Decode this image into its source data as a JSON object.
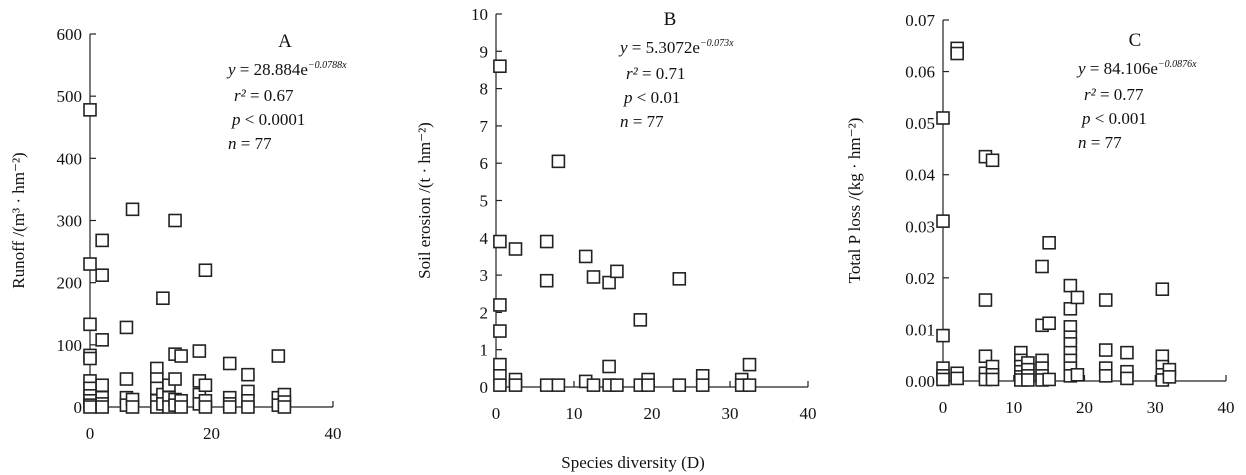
{
  "shared_xlabel": "Species diversity (D)",
  "chart_data": [
    {
      "type": "scatter",
      "panel": "A",
      "xlabel": "",
      "ylabel": "Runoff /(m³ · hm⁻²)",
      "xlim": [
        0,
        40
      ],
      "ylim": [
        0,
        600
      ],
      "xticks": [
        "0",
        "20",
        "40"
      ],
      "yticks": [
        "0",
        "100",
        "200",
        "300",
        "400",
        "500",
        "600"
      ],
      "annotations": {
        "equation": "y = 28.884e−0.0788x",
        "eq_coef": "28.884e",
        "eq_exp": "−0.0788x",
        "r2": "r² = 0.67",
        "p": "p < 0.0001",
        "n": "n = 77"
      },
      "points": [
        [
          0,
          478
        ],
        [
          0,
          230
        ],
        [
          0,
          133
        ],
        [
          0,
          83
        ],
        [
          0,
          78
        ],
        [
          0,
          42
        ],
        [
          0,
          30
        ],
        [
          0,
          18
        ],
        [
          0,
          10
        ],
        [
          0,
          3
        ],
        [
          0,
          0
        ],
        [
          2,
          268
        ],
        [
          2,
          212
        ],
        [
          2,
          108
        ],
        [
          2,
          35
        ],
        [
          2,
          15
        ],
        [
          2,
          5
        ],
        [
          2,
          0
        ],
        [
          6,
          128
        ],
        [
          6,
          45
        ],
        [
          6,
          15
        ],
        [
          6,
          3
        ],
        [
          7,
          318
        ],
        [
          7,
          12
        ],
        [
          7,
          0
        ],
        [
          11,
          62
        ],
        [
          11,
          45
        ],
        [
          11,
          30
        ],
        [
          11,
          10
        ],
        [
          11,
          0
        ],
        [
          12,
          175
        ],
        [
          12,
          20
        ],
        [
          12,
          5
        ],
        [
          13,
          35
        ],
        [
          13,
          15
        ],
        [
          13,
          0
        ],
        [
          14,
          300
        ],
        [
          14,
          85
        ],
        [
          14,
          45
        ],
        [
          14,
          12
        ],
        [
          14,
          3
        ],
        [
          15,
          82
        ],
        [
          15,
          10
        ],
        [
          15,
          0
        ],
        [
          18,
          90
        ],
        [
          18,
          42
        ],
        [
          18,
          20
        ],
        [
          18,
          5
        ],
        [
          19,
          220
        ],
        [
          19,
          35
        ],
        [
          19,
          10
        ],
        [
          19,
          0
        ],
        [
          23,
          70
        ],
        [
          23,
          15
        ],
        [
          23,
          5
        ],
        [
          23,
          0
        ],
        [
          26,
          52
        ],
        [
          26,
          25
        ],
        [
          26,
          10
        ],
        [
          26,
          0
        ],
        [
          31,
          82
        ],
        [
          31,
          15
        ],
        [
          31,
          3
        ],
        [
          32,
          20
        ],
        [
          32,
          8
        ],
        [
          32,
          0
        ]
      ]
    },
    {
      "type": "scatter",
      "panel": "B",
      "xlabel": "",
      "ylabel": "Soil erosion /(t · hm⁻²)",
      "xlim": [
        0,
        40
      ],
      "ylim": [
        0,
        10
      ],
      "xticks": [
        "0",
        "10",
        "20",
        "30",
        "40"
      ],
      "yticks": [
        "0",
        "1",
        "2",
        "3",
        "4",
        "5",
        "6",
        "7",
        "8",
        "9",
        "10"
      ],
      "annotations": {
        "equation": "y = 5.3072e−0.073x",
        "eq_coef": "5.3072e",
        "eq_exp": "−0.073x",
        "r2": "r² = 0.71",
        "p": "p < 0.01",
        "n": "n = 77"
      },
      "points": [
        [
          0.5,
          8.6
        ],
        [
          0.5,
          3.9
        ],
        [
          0.5,
          2.2
        ],
        [
          0.5,
          1.5
        ],
        [
          0.5,
          0.6
        ],
        [
          0.5,
          0.3
        ],
        [
          0.5,
          0.05
        ],
        [
          2.5,
          3.7
        ],
        [
          2.5,
          0.2
        ],
        [
          2.5,
          0.05
        ],
        [
          6.5,
          3.9
        ],
        [
          6.5,
          2.85
        ],
        [
          6.5,
          0.05
        ],
        [
          8,
          6.05
        ],
        [
          8,
          0.05
        ],
        [
          11.5,
          3.5
        ],
        [
          11.5,
          0.15
        ],
        [
          12.5,
          2.95
        ],
        [
          12.5,
          0.05
        ],
        [
          14.5,
          2.8
        ],
        [
          14.5,
          0.55
        ],
        [
          14.5,
          0.05
        ],
        [
          15.5,
          3.1
        ],
        [
          15.5,
          0.05
        ],
        [
          18.5,
          1.8
        ],
        [
          18.5,
          0.05
        ],
        [
          19.5,
          0.2
        ],
        [
          19.5,
          0.05
        ],
        [
          23.5,
          2.9
        ],
        [
          23.5,
          0.05
        ],
        [
          26.5,
          0.3
        ],
        [
          26.5,
          0.05
        ],
        [
          31.5,
          0.2
        ],
        [
          31.5,
          0.05
        ],
        [
          32.5,
          0.6
        ],
        [
          32.5,
          0.05
        ]
      ]
    },
    {
      "type": "scatter",
      "panel": "C",
      "xlabel": "",
      "ylabel": "Total P loss /(kg · hm⁻²)",
      "xlim": [
        0,
        40
      ],
      "ylim": [
        0,
        0.07
      ],
      "xticks": [
        "0",
        "10",
        "20",
        "30",
        "40"
      ],
      "yticks": [
        "0.00",
        "0.01",
        "0.02",
        "0.03",
        "0.04",
        "0.05",
        "0.06",
        "0.07"
      ],
      "annotations": {
        "equation": "y = 84.106e−0.0876x",
        "eq_coef": "84.106e",
        "eq_exp": "−0.0876x",
        "r2": "r² = 0.77",
        "p": "p < 0.001",
        "n": "n = 77"
      },
      "points": [
        [
          0,
          0.051
        ],
        [
          0,
          0.031
        ],
        [
          0,
          0.0088
        ],
        [
          0,
          0.0025
        ],
        [
          0,
          0.001
        ],
        [
          0,
          0.0003
        ],
        [
          2,
          0.0645
        ],
        [
          2,
          0.0635
        ],
        [
          2,
          0.0015
        ],
        [
          2,
          0.0005
        ],
        [
          6,
          0.0435
        ],
        [
          6,
          0.0157
        ],
        [
          6,
          0.0048
        ],
        [
          6,
          0.0015
        ],
        [
          6,
          0.0003
        ],
        [
          7,
          0.0428
        ],
        [
          7,
          0.0028
        ],
        [
          7,
          0.0012
        ],
        [
          7,
          0.0003
        ],
        [
          11,
          0.0055
        ],
        [
          11,
          0.004
        ],
        [
          11,
          0.0028
        ],
        [
          11,
          0.0018
        ],
        [
          11,
          0.0008
        ],
        [
          11,
          0.0002
        ],
        [
          12,
          0.0035
        ],
        [
          12,
          0.0022
        ],
        [
          12,
          0.001
        ],
        [
          12,
          0.0002
        ],
        [
          14,
          0.0222
        ],
        [
          14,
          0.0108
        ],
        [
          14,
          0.004
        ],
        [
          14,
          0.0025
        ],
        [
          14,
          0.001
        ],
        [
          14,
          0.0002
        ],
        [
          15,
          0.0268
        ],
        [
          15,
          0.0112
        ],
        [
          15,
          0.0003
        ],
        [
          18,
          0.0185
        ],
        [
          18,
          0.014
        ],
        [
          18,
          0.0105
        ],
        [
          18,
          0.0085
        ],
        [
          18,
          0.0072
        ],
        [
          18,
          0.0055
        ],
        [
          18,
          0.004
        ],
        [
          18,
          0.0025
        ],
        [
          18,
          0.001
        ],
        [
          19,
          0.0162
        ],
        [
          19,
          0.0012
        ],
        [
          23,
          0.0157
        ],
        [
          23,
          0.006
        ],
        [
          23,
          0.0025
        ],
        [
          23,
          0.001
        ],
        [
          26,
          0.0055
        ],
        [
          26,
          0.0018
        ],
        [
          26,
          0.0005
        ],
        [
          31,
          0.0178
        ],
        [
          31,
          0.0048
        ],
        [
          31,
          0.0028
        ],
        [
          31,
          0.0012
        ],
        [
          31,
          0.0002
        ],
        [
          32,
          0.0022
        ],
        [
          32,
          0.0008
        ]
      ]
    }
  ]
}
